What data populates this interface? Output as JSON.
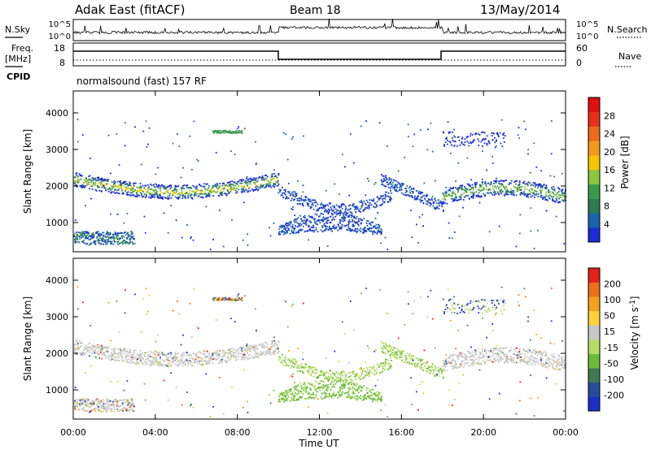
{
  "header": {
    "station": "Adak East (fitACF)",
    "beam": "Beam 18",
    "date": "13/May/2014"
  },
  "side_labels": {
    "nsky": "N.Sky",
    "nsearch": "N.Search",
    "freq": "Freq.",
    "freq_unit": "[MHz]",
    "nave": "Nave",
    "cpid": "CPID"
  },
  "noise_axis": {
    "left_top": "10^5",
    "left_bottom": "10^0",
    "right_top": "10^5",
    "right_bottom": "10^0"
  },
  "freq_axis": {
    "left_top": "18",
    "left_bottom": "8",
    "right_top": "60",
    "right_bottom": "0"
  },
  "cpid_text": "normalsound (fast) 157 RF",
  "colors": {
    "power": [
      "#1b2bd6",
      "#1b62b0",
      "#2e7a55",
      "#3a9a4e",
      "#8cc63e",
      "#f5c400",
      "#f39a1e",
      "#ee6a1c",
      "#e8301b",
      "#e01010"
    ],
    "velocity": [
      "#1d2fc8",
      "#264c9c",
      "#3f7a55",
      "#6dbb3a",
      "#b6dd63",
      "#c8c8c8",
      "#ffd23a",
      "#f4a11e",
      "#ee6d1c",
      "#e02218"
    ]
  },
  "chart_data": [
    {
      "type": "heatmap",
      "name": "power",
      "xlabel": "",
      "ylabel": "Slant Range [km]",
      "xlim": [
        "00:00",
        "00:00"
      ],
      "ylim": [
        200,
        4600
      ],
      "yticks": [
        "1000",
        "2000",
        "3000",
        "4000"
      ],
      "colorbar": {
        "label": "Power [dB]",
        "ticks": [
          "4",
          "8",
          "12",
          "16",
          "20",
          "24",
          "28"
        ]
      }
    },
    {
      "type": "heatmap",
      "name": "velocity",
      "xlabel": "Time UT",
      "ylabel": "Slant Range [km]",
      "xticks": [
        "00:00",
        "04:00",
        "08:00",
        "12:00",
        "16:00",
        "20:00",
        "00:00"
      ],
      "yticks": [
        "1000",
        "2000",
        "3000",
        "4000"
      ],
      "ylim": [
        200,
        4600
      ],
      "colorbar": {
        "label": "Velocity [m s^-1]",
        "ticks": [
          "200",
          "100",
          "50",
          "15",
          "-15",
          "-50",
          "-100",
          "-200"
        ]
      }
    }
  ]
}
